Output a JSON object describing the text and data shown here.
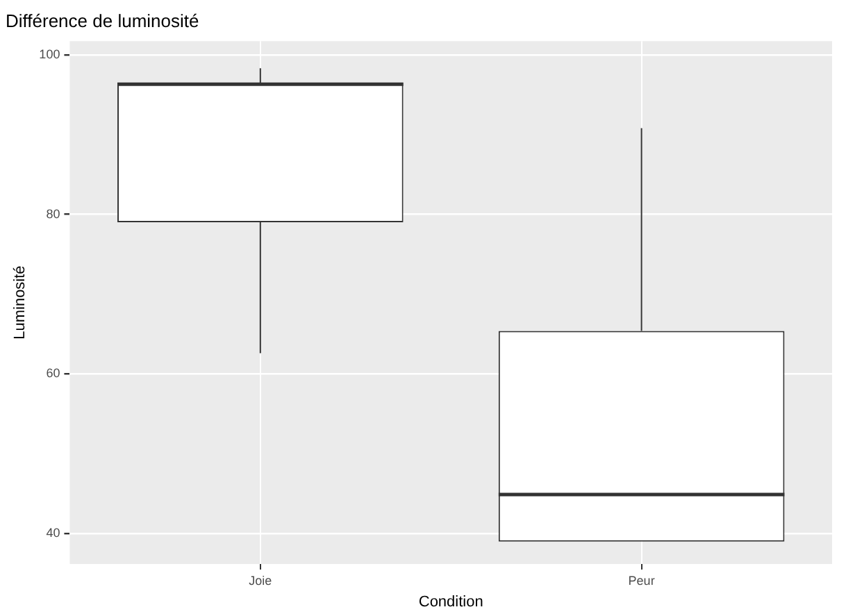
{
  "chart_data": {
    "type": "box",
    "title": "Différence de luminosité",
    "xlabel": "Condition",
    "ylabel": "Luminosité",
    "categories": [
      "Joie",
      "Peur"
    ],
    "boxes": [
      {
        "low": 62.6,
        "q1": 79.0,
        "median": 96.3,
        "q3": 96.5,
        "high": 98.3
      },
      {
        "low": 39.0,
        "q1": 39.0,
        "median": 44.9,
        "q3": 65.4,
        "high": 90.8
      }
    ],
    "color": "#333333",
    "ylim": [
      36.2,
      101.7
    ],
    "yticks": [
      40,
      60,
      80,
      100
    ],
    "grid": true,
    "legend": false
  }
}
